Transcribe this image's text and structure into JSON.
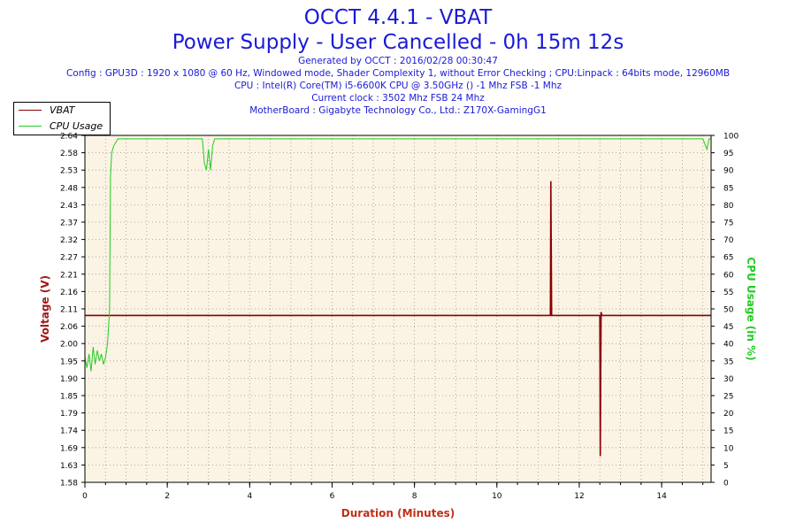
{
  "header": {
    "title_line1": "OCCT 4.4.1 - VBAT",
    "title_line2": "Power Supply - User Cancelled - 0h 15m 12s",
    "generated": "Generated by OCCT : 2016/02/28 00:30:47",
    "config": "Config : GPU3D : 1920 x 1080 @ 60 Hz, Windowed mode, Shader Complexity 1, without Error Checking ; CPU:Linpack : 64bits mode, 12960MB",
    "cpu": "CPU : Intel(R) Core(TM) i5-6600K CPU @ 3.50GHz () -1 Mhz FSB -1 Mhz",
    "clock": "Current clock : 3502 Mhz FSB 24 Mhz",
    "motherboard": "MotherBoard : Gigabyte Technology Co., Ltd.: Z170X-GamingG1"
  },
  "legend": {
    "items": [
      {
        "label": "VBAT",
        "color": "#8b0000"
      },
      {
        "label": "CPU Usage",
        "color": "#22cc22"
      }
    ]
  },
  "chart_data": {
    "type": "line",
    "xlabel": "Duration (Minutes)",
    "ylabel": "Voltage (V)",
    "y2label": "CPU Usage (in %)",
    "xlim": [
      0,
      15.2
    ],
    "ylim": [
      1.58,
      2.64
    ],
    "y2lim": [
      0,
      100
    ],
    "x_ticks": [
      0,
      2,
      4,
      6,
      8,
      10,
      12,
      14
    ],
    "y_ticks": [
      "1.58",
      "1.63",
      "1.69",
      "1.74",
      "1.79",
      "1.85",
      "1.90",
      "1.95",
      "2.00",
      "2.06",
      "2.11",
      "2.16",
      "2.21",
      "2.27",
      "2.32",
      "2.37",
      "2.43",
      "2.48",
      "2.53",
      "2.58",
      "2.64"
    ],
    "y2_ticks": [
      0,
      5,
      10,
      15,
      20,
      25,
      30,
      35,
      40,
      45,
      50,
      55,
      60,
      65,
      70,
      75,
      80,
      85,
      90,
      95,
      100
    ],
    "grid": true,
    "legend_position": "top-left",
    "colors": {
      "plot_bg": "#fbf3e4",
      "grid": "#9a9a9a",
      "vbat": "#8b0000",
      "cpu": "#22cc22",
      "axis_label_left": "#a01818",
      "axis_label_right": "#22cc22",
      "axis_label_bottom": "#c03018"
    },
    "series": [
      {
        "name": "VBAT",
        "axis": "left",
        "x": [
          0,
          11.3,
          11.31,
          11.33,
          11.35,
          12.5,
          12.51,
          12.53,
          12.55,
          15.2
        ],
        "values": [
          2.09,
          2.09,
          2.5,
          2.09,
          2.09,
          2.09,
          1.66,
          2.1,
          2.09,
          2.09
        ]
      },
      {
        "name": "CPU Usage",
        "axis": "right",
        "x": [
          0,
          0.05,
          0.1,
          0.15,
          0.2,
          0.25,
          0.3,
          0.35,
          0.4,
          0.45,
          0.5,
          0.55,
          0.6,
          0.62,
          0.65,
          0.7,
          0.8,
          1.0,
          1.5,
          2.0,
          2.5,
          2.85,
          2.9,
          2.95,
          3.0,
          3.05,
          3.1,
          3.15,
          3.3,
          4.0,
          5.0,
          6.0,
          7.0,
          8.0,
          9.0,
          10.0,
          11.0,
          12.0,
          13.0,
          14.0,
          15.0,
          15.1,
          15.15,
          15.2
        ],
        "values": [
          36,
          33,
          37,
          32,
          39,
          34,
          38,
          35,
          37,
          34,
          36,
          40,
          50,
          88,
          95,
          97,
          99,
          99,
          99,
          99,
          99,
          99,
          92,
          90,
          96,
          90,
          97,
          99,
          99,
          99,
          99,
          99,
          99,
          99,
          99,
          99,
          99,
          99,
          99,
          99,
          99,
          96,
          99,
          99
        ]
      }
    ]
  }
}
